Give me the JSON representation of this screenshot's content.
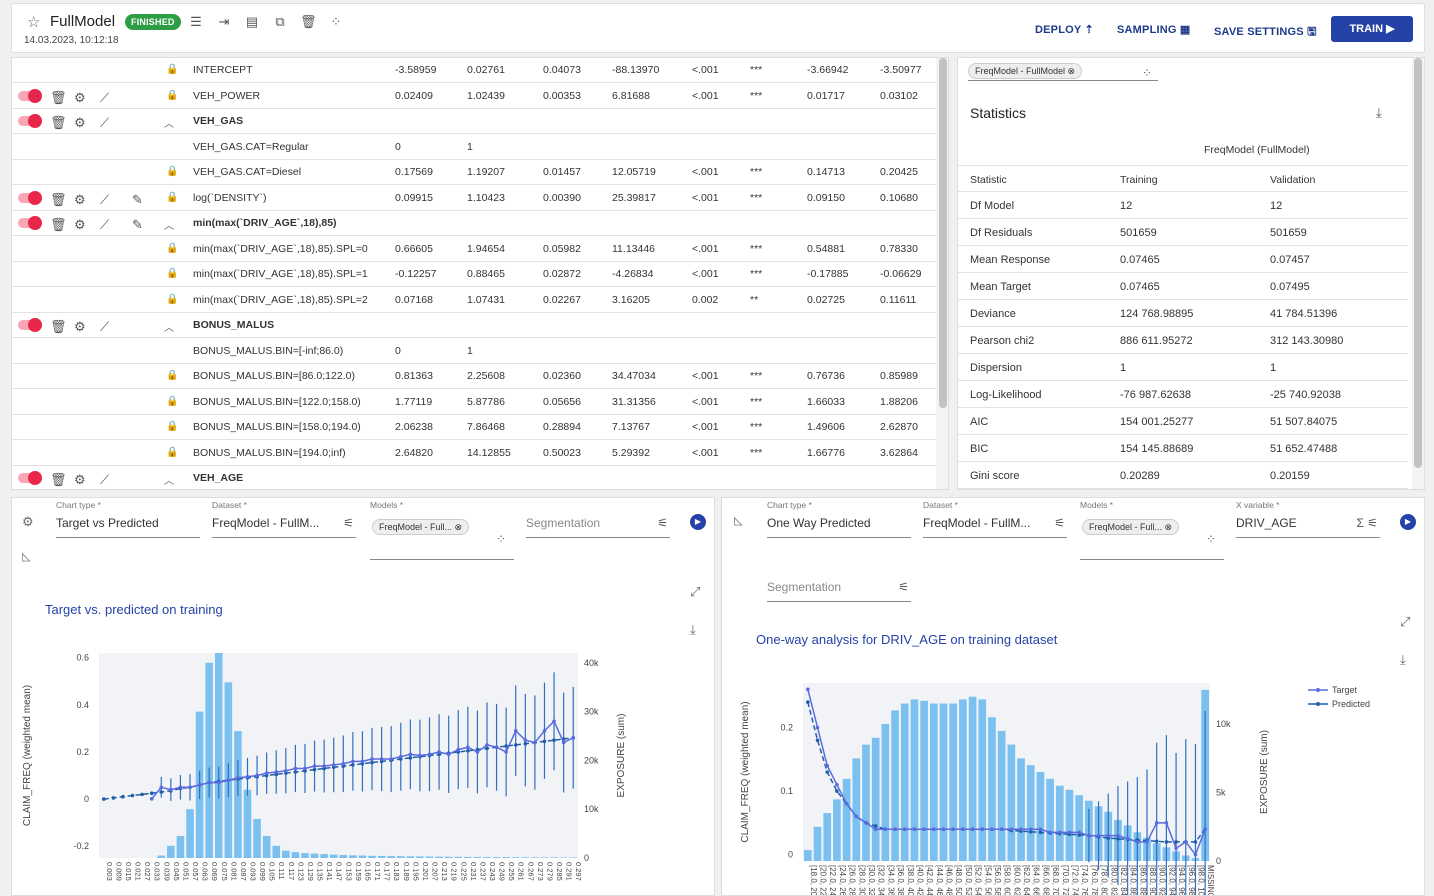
{
  "header": {
    "title": "FullModel",
    "status": "FINISHED",
    "timestamp": "14.03.2023, 10:12:18",
    "deploy": "DEPLOY",
    "sampling": "SAMPLING",
    "save": "SAVE SETTINGS",
    "train": "TRAIN"
  },
  "coef_rows": [
    {
      "type": "param",
      "name": "INTERCEPT",
      "vals": [
        "-3.58959",
        "0.02761",
        "0.04073",
        "-88.13970",
        "<.001",
        "***",
        "-3.66942",
        "-3.50977"
      ]
    },
    {
      "type": "var",
      "name": "VEH_POWER",
      "edit": false,
      "vals": [
        "0.02409",
        "1.02439",
        "0.00353",
        "6.81688",
        "<.001",
        "***",
        "0.01717",
        "0.03102"
      ]
    },
    {
      "type": "group",
      "name": "VEH_GAS",
      "edit": false
    },
    {
      "type": "ref",
      "name": "VEH_GAS.CAT=Regular",
      "vals": [
        "0",
        "1"
      ]
    },
    {
      "type": "param",
      "name": "VEH_GAS.CAT=Diesel",
      "vals": [
        "0.17569",
        "1.19207",
        "0.01457",
        "12.05719",
        "<.001",
        "***",
        "0.14713",
        "0.20425"
      ]
    },
    {
      "type": "var",
      "name": "log(`DENSITY`)",
      "edit": true,
      "vals": [
        "0.09915",
        "1.10423",
        "0.00390",
        "25.39817",
        "<.001",
        "***",
        "0.09150",
        "0.10680"
      ]
    },
    {
      "type": "group",
      "name": "min(max(`DRIV_AGE`,18),85)",
      "edit": true
    },
    {
      "type": "param",
      "name": "min(max(`DRIV_AGE`,18),85).SPL=0",
      "vals": [
        "0.66605",
        "1.94654",
        "0.05982",
        "11.13446",
        "<.001",
        "***",
        "0.54881",
        "0.78330"
      ]
    },
    {
      "type": "param",
      "name": "min(max(`DRIV_AGE`,18),85).SPL=1",
      "vals": [
        "-0.12257",
        "0.88465",
        "0.02872",
        "-4.26834",
        "<.001",
        "***",
        "-0.17885",
        "-0.06629"
      ]
    },
    {
      "type": "param",
      "name": "min(max(`DRIV_AGE`,18),85).SPL=2",
      "vals": [
        "0.07168",
        "1.07431",
        "0.02267",
        "3.16205",
        "0.002",
        "**",
        "0.02725",
        "0.11611"
      ]
    },
    {
      "type": "group",
      "name": "BONUS_MALUS",
      "edit": false
    },
    {
      "type": "ref",
      "name": "BONUS_MALUS.BIN=[-inf;86.0)",
      "vals": [
        "0",
        "1"
      ]
    },
    {
      "type": "param",
      "name": "BONUS_MALUS.BIN=[86.0;122.0)",
      "vals": [
        "0.81363",
        "2.25608",
        "0.02360",
        "34.47034",
        "<.001",
        "***",
        "0.76736",
        "0.85989"
      ]
    },
    {
      "type": "param",
      "name": "BONUS_MALUS.BIN=[122.0;158.0)",
      "vals": [
        "1.77119",
        "5.87786",
        "0.05656",
        "31.31356",
        "<.001",
        "***",
        "1.66033",
        "1.88206"
      ]
    },
    {
      "type": "param",
      "name": "BONUS_MALUS.BIN=[158.0;194.0)",
      "vals": [
        "2.06238",
        "7.86468",
        "0.28894",
        "7.13767",
        "<.001",
        "***",
        "1.49606",
        "2.62870"
      ]
    },
    {
      "type": "param",
      "name": "BONUS_MALUS.BIN=[194.0;inf)",
      "vals": [
        "2.64820",
        "14.12855",
        "0.50023",
        "5.29392",
        "<.001",
        "***",
        "1.66776",
        "3.62864"
      ]
    },
    {
      "type": "group",
      "name": "VEH_AGE",
      "edit": false
    }
  ],
  "stats": {
    "model_chip": "FreqModel - FullModel",
    "title": "Statistics",
    "model_header": "FreqModel (FullModel)",
    "cols": [
      "Statistic",
      "Training",
      "Validation"
    ],
    "rows": [
      [
        "Df Model",
        "12",
        "12"
      ],
      [
        "Df Residuals",
        "501659",
        "501659"
      ],
      [
        "Mean Response",
        "0.07465",
        "0.07457"
      ],
      [
        "Mean Target",
        "0.07465",
        "0.07495"
      ],
      [
        "Deviance",
        "124 768.98895",
        "41 784.51396"
      ],
      [
        "Pearson chi2",
        "886 611.95272",
        "312 143.30980"
      ],
      [
        "Dispersion",
        "1",
        "1"
      ],
      [
        "Log-Likelihood",
        "-76 987.62638",
        "-25 740.92038"
      ],
      [
        "AIC",
        "154 001.25277",
        "51 507.84075"
      ],
      [
        "BIC",
        "154 145.88689",
        "51 652.47488"
      ],
      [
        "Gini score",
        "0.20289",
        "0.20159"
      ]
    ]
  },
  "left_chart": {
    "chart_type_label": "Chart type *",
    "chart_type": "Target vs Predicted",
    "dataset_label": "Dataset *",
    "dataset": "FreqModel - FullM...",
    "models_label": "Models *",
    "model_chip": "FreqModel - Full...",
    "segmentation": "Segmentation",
    "title": "Target vs. predicted on training"
  },
  "right_chart": {
    "chart_type_label": "Chart type *",
    "chart_type": "One Way Predicted",
    "dataset_label": "Dataset *",
    "dataset": "FreqModel - FullM...",
    "models_label": "Models *",
    "model_chip": "FreqModel - Full...",
    "xvar_label": "X variable *",
    "xvar": "DRIV_AGE",
    "segmentation": "Segmentation",
    "title": "One-way analysis for DRIV_AGE on training dataset"
  },
  "chart_data": [
    {
      "type": "bar+line",
      "title": "Target vs. predicted on training",
      "xlabel": "",
      "ylabel": "CLAIM_FREQ (weighted mean)",
      "y2label": "EXPOSURE (sum)",
      "ylim": [
        -0.25,
        0.62
      ],
      "y2lim": [
        0,
        42000
      ],
      "yticks": [
        "0.6",
        "0.4",
        "0.2",
        "0",
        "-0.2"
      ],
      "y2ticks": [
        "40k",
        "30k",
        "20k",
        "10k",
        "0"
      ],
      "categories": [
        "0.003",
        "0.009",
        "0.015",
        "0.021",
        "0.027",
        "0.033",
        "0.039",
        "0.045",
        "0.051",
        "0.057",
        "0.063",
        "0.069",
        "0.075",
        "0.081",
        "0.087",
        "0.093",
        "0.099",
        "0.105",
        "0.111",
        "0.117",
        "0.123",
        "0.129",
        "0.135",
        "0.141",
        "0.147",
        "0.153",
        "0.159",
        "0.165",
        "0.171",
        "0.177",
        "0.183",
        "0.189",
        "0.195",
        "0.201",
        "0.207",
        "0.213",
        "0.219",
        "0.225",
        "0.231",
        "0.237",
        "0.243",
        "0.249",
        "0.255",
        "0.261",
        "0.267",
        "0.273",
        "0.279",
        "0.285",
        "0.291",
        "0.297"
      ],
      "exposure": [
        0,
        0,
        0,
        0,
        0,
        0,
        500,
        2500,
        4500,
        10000,
        30000,
        40000,
        42000,
        36000,
        26000,
        14000,
        8000,
        4500,
        2500,
        1500,
        1200,
        1000,
        900,
        800,
        700,
        600,
        550,
        500,
        450,
        420,
        400,
        380,
        350,
        330,
        300,
        280,
        260,
        240,
        220,
        200,
        190,
        180,
        170,
        160,
        150,
        140,
        130,
        120,
        110,
        100
      ],
      "target": [
        null,
        null,
        null,
        null,
        null,
        0.001,
        0.05,
        0.04,
        0.05,
        0.05,
        0.06,
        0.07,
        0.07,
        0.08,
        0.09,
        0.095,
        0.1,
        0.11,
        0.115,
        0.12,
        0.13,
        0.13,
        0.14,
        0.14,
        0.145,
        0.15,
        0.16,
        0.16,
        0.17,
        0.17,
        0.17,
        0.18,
        0.19,
        0.185,
        0.19,
        0.2,
        0.19,
        0.21,
        0.22,
        0.2,
        0.23,
        0.22,
        0.2,
        0.29,
        0.25,
        0.24,
        0.29,
        0.33,
        0.24,
        0.26
      ],
      "predicted": [
        0.0,
        0.005,
        0.01,
        0.015,
        0.02,
        0.025,
        0.03,
        0.035,
        0.045,
        0.05,
        0.06,
        0.07,
        0.075,
        0.08,
        0.085,
        0.09,
        0.095,
        0.1,
        0.105,
        0.11,
        0.115,
        0.12,
        0.125,
        0.13,
        0.135,
        0.14,
        0.145,
        0.15,
        0.155,
        0.16,
        0.165,
        0.17,
        0.175,
        0.18,
        0.185,
        0.19,
        0.195,
        0.2,
        0.205,
        0.21,
        0.215,
        0.22,
        0.225,
        0.23,
        0.235,
        0.24,
        0.245,
        0.25,
        0.255,
        0.26
      ]
    },
    {
      "type": "bar+line",
      "title": "One-way analysis for DRIV_AGE on training dataset",
      "xlabel": "",
      "ylabel": "CLAIM_FREQ (weighted mean)",
      "y2label": "EXPOSURE (sum)",
      "ylim": [
        -0.01,
        0.27
      ],
      "y2lim": [
        0,
        13000
      ],
      "yticks": [
        "0.2",
        "0.1",
        "0"
      ],
      "y2ticks": [
        "10k",
        "5k",
        "0"
      ],
      "legend": [
        "Target",
        "Predicted"
      ],
      "categories": [
        "[18.0, 20.0)",
        "[20.0, 22.0)",
        "[22.0, 24.0)",
        "[24.0, 26.0)",
        "[26.0, 28.0)",
        "[28.0, 30.0)",
        "[30.0, 32.0)",
        "[32.0, 34.0)",
        "[34.0, 36.0)",
        "[36.0, 38.0)",
        "[38.0, 40.0)",
        "[40.0, 42.0)",
        "[42.0, 44.0)",
        "[44.0, 46.0)",
        "[46.0, 48.0)",
        "[48.0, 50.0)",
        "[50.0, 52.0)",
        "[52.0, 54.0)",
        "[54.0, 56.0)",
        "[56.0, 58.0)",
        "[58.0, 60.0)",
        "[60.0, 62.0)",
        "[62.0, 64.0)",
        "[64.0, 66.0)",
        "[66.0, 68.0)",
        "[68.0, 70.0)",
        "[70.0, 72.0)",
        "[72.0, 74.0)",
        "[74.0, 76.0)",
        "[76.0, 78.0)",
        "[78.0, 80.0)",
        "[80.0, 82.0)",
        "[82.0, 84.0)",
        "[84.0, 86.0)",
        "[86.0, 88.0)",
        "[88.0, 90.0)",
        "[90.0, 92.0)",
        "[92.0, 94.0)",
        "[94.0, 96.0)",
        "[96.0, 98.0)",
        "[98.0, 100.0)",
        "MISSING_VALUE"
      ],
      "exposure": [
        800,
        2500,
        3500,
        4500,
        6000,
        7500,
        8500,
        9000,
        10000,
        11000,
        11500,
        11800,
        11700,
        11500,
        11500,
        11500,
        11800,
        12000,
        11800,
        10500,
        9500,
        8500,
        7500,
        7000,
        6500,
        6000,
        5500,
        5200,
        4800,
        4400,
        4000,
        3600,
        3000,
        2600,
        2100,
        1700,
        1300,
        1000,
        700,
        400,
        200,
        12500
      ],
      "target": [
        0.26,
        0.2,
        0.14,
        0.11,
        0.08,
        0.06,
        0.05,
        0.04,
        0.04,
        0.04,
        0.04,
        0.04,
        0.04,
        0.04,
        0.04,
        0.04,
        0.04,
        0.04,
        0.04,
        0.04,
        0.04,
        0.04,
        0.04,
        0.04,
        0.04,
        0.035,
        0.035,
        0.035,
        0.035,
        0.03,
        0.03,
        0.03,
        0.03,
        0.025,
        0.02,
        0.02,
        0.05,
        0.05,
        0.01,
        0.02,
        0.0,
        0.04
      ],
      "predicted": [
        0.24,
        0.18,
        0.13,
        0.1,
        0.08,
        0.06,
        0.05,
        0.045,
        0.04,
        0.04,
        0.04,
        0.04,
        0.04,
        0.04,
        0.04,
        0.04,
        0.04,
        0.04,
        0.04,
        0.04,
        0.04,
        0.038,
        0.037,
        0.036,
        0.035,
        0.034,
        0.033,
        0.032,
        0.031,
        0.03,
        0.028,
        0.026,
        0.025,
        0.024,
        0.023,
        0.022,
        0.021,
        0.02,
        0.02,
        0.02,
        0.02,
        0.04
      ]
    }
  ]
}
